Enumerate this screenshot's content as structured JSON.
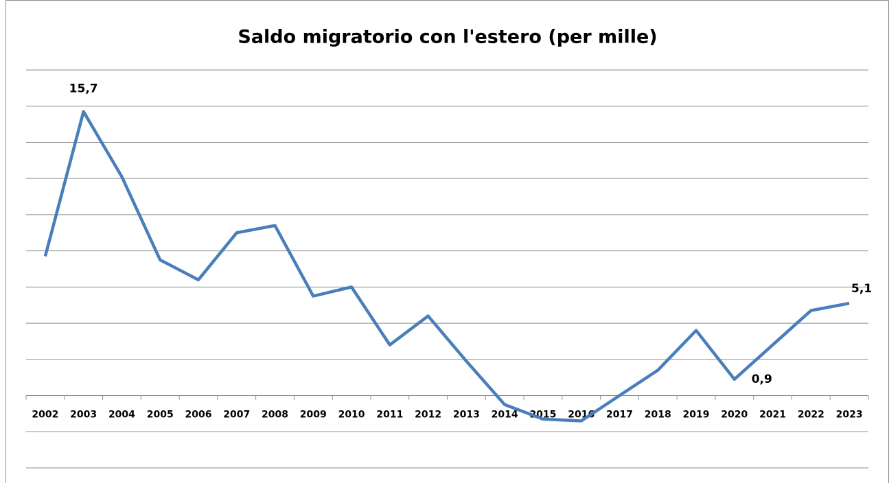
{
  "chart_data": {
    "type": "line",
    "title": "Saldo migratorio con l'estero (per mille)",
    "categories": [
      "2002",
      "2003",
      "2004",
      "2005",
      "2006",
      "2007",
      "2008",
      "2009",
      "2010",
      "2011",
      "2012",
      "2013",
      "2014",
      "2015",
      "2016",
      "2017",
      "2018",
      "2019",
      "2020",
      "2021",
      "2022",
      "2023"
    ],
    "series": [
      {
        "name": "Saldo migratorio",
        "color": "#4a7ebb",
        "values": [
          7.7,
          15.7,
          12.1,
          7.5,
          6.4,
          9.0,
          9.4,
          5.5,
          6.0,
          2.8,
          4.4,
          1.9,
          -0.5,
          -1.3,
          -1.4,
          0.0,
          1.4,
          3.6,
          0.9,
          2.8,
          4.7,
          5.1
        ],
        "value_labels": [
          null,
          "15,7",
          null,
          null,
          null,
          null,
          null,
          null,
          null,
          null,
          null,
          null,
          null,
          null,
          null,
          null,
          null,
          null,
          "0,9",
          null,
          null,
          "5,1"
        ]
      }
    ],
    "ylim": [
      -4,
      18
    ],
    "yticks": [
      -4,
      -2,
      0,
      2,
      4,
      6,
      8,
      10,
      12,
      14,
      16,
      18
    ],
    "grid": true
  }
}
